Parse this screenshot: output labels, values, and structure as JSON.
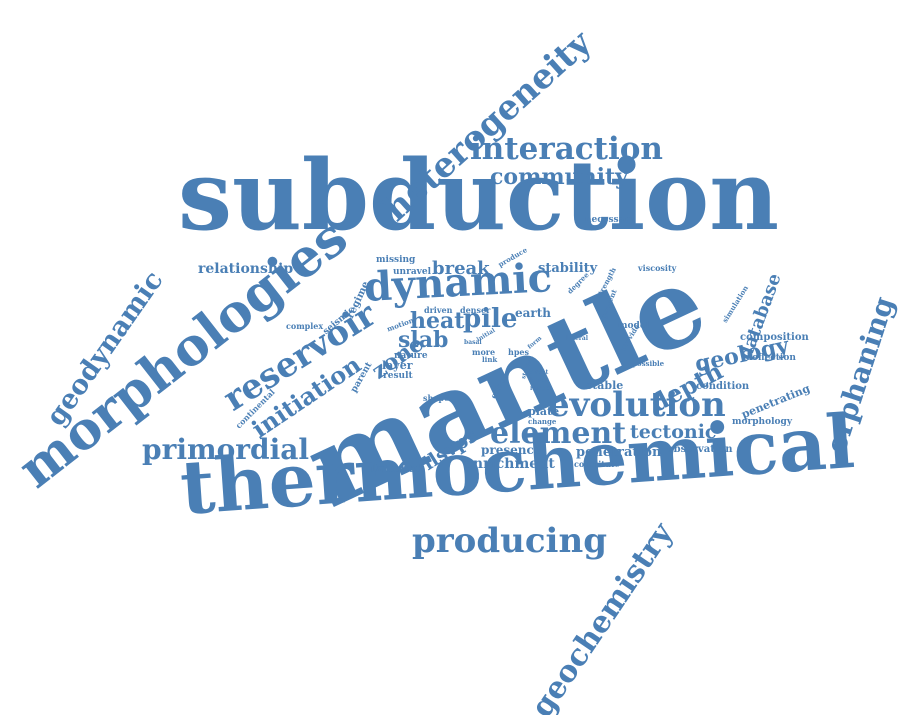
{
  "cloud": {
    "color": "#4a7fb5",
    "words": [
      {
        "text": "subduction",
        "weight": 10
      },
      {
        "text": "mantle",
        "weight": 10
      },
      {
        "text": "thermochemical",
        "weight": 9
      },
      {
        "text": "morphologies",
        "weight": 8
      },
      {
        "text": "heterogeneity",
        "weight": 7
      },
      {
        "text": "geodynamic",
        "weight": 6
      },
      {
        "text": "orphaning",
        "weight": 6
      },
      {
        "text": "geochemistry",
        "weight": 6
      },
      {
        "text": "dynamic",
        "weight": 6
      },
      {
        "text": "reservoir",
        "weight": 6
      },
      {
        "text": "evolution",
        "weight": 6
      },
      {
        "text": "element",
        "weight": 5
      },
      {
        "text": "producing",
        "weight": 5
      },
      {
        "text": "interaction",
        "weight": 5
      },
      {
        "text": "primordial",
        "weight": 4
      },
      {
        "text": "community",
        "weight": 4
      },
      {
        "text": "initiation",
        "weight": 4
      },
      {
        "text": "heat",
        "weight": 4
      },
      {
        "text": "pile",
        "weight": 4
      },
      {
        "text": "slab",
        "weight": 4
      },
      {
        "text": "zone",
        "weight": 4
      },
      {
        "text": "depth",
        "weight": 4
      },
      {
        "text": "geology",
        "weight": 4
      },
      {
        "text": "database",
        "weight": 3
      },
      {
        "text": "tectonic",
        "weight": 3
      },
      {
        "text": "llsvps",
        "weight": 3
      },
      {
        "text": "break",
        "weight": 3
      },
      {
        "text": "relationship",
        "weight": 3
      },
      {
        "text": "stability",
        "weight": 3
      },
      {
        "text": "enrichment",
        "weight": 2
      },
      {
        "text": "penetration",
        "weight": 2
      },
      {
        "text": "presence",
        "weight": 2
      },
      {
        "text": "observation",
        "weight": 2
      },
      {
        "text": "flattened",
        "weight": 2
      },
      {
        "text": "penetrating",
        "weight": 2
      },
      {
        "text": "earth",
        "weight": 2
      },
      {
        "text": "layer",
        "weight": 2
      },
      {
        "text": "composition",
        "weight": 2
      },
      {
        "text": "deflection",
        "weight": 2
      },
      {
        "text": "condition",
        "weight": 2
      },
      {
        "text": "morphology",
        "weight": 2
      },
      {
        "text": "seismic",
        "weight": 2
      },
      {
        "text": "regime",
        "weight": 2
      },
      {
        "text": "missing",
        "weight": 2
      },
      {
        "text": "unravel",
        "weight": 2
      },
      {
        "text": "nature",
        "weight": 2
      },
      {
        "text": "result",
        "weight": 2
      },
      {
        "text": "parent",
        "weight": 2
      },
      {
        "text": "driven",
        "weight": 2
      },
      {
        "text": "denser",
        "weight": 2
      },
      {
        "text": "stable",
        "weight": 2
      },
      {
        "text": "plate",
        "weight": 2
      },
      {
        "text": "model",
        "weight": 2
      },
      {
        "text": "necessary",
        "weight": 2
      },
      {
        "text": "viscosity",
        "weight": 1
      },
      {
        "text": "continental",
        "weight": 1
      },
      {
        "text": "complex",
        "weight": 1
      },
      {
        "text": "shape",
        "weight": 1
      },
      {
        "text": "simulation",
        "weight": 1
      },
      {
        "text": "strength",
        "weight": 1
      },
      {
        "text": "produce",
        "weight": 1
      },
      {
        "text": "degree",
        "weight": 1
      },
      {
        "text": "present",
        "weight": 1
      },
      {
        "text": "provide",
        "weight": 1
      },
      {
        "text": "possible",
        "weight": 1
      },
      {
        "text": "lateral",
        "weight": 1
      },
      {
        "text": "motion",
        "weight": 1
      },
      {
        "text": "more",
        "weight": 1
      },
      {
        "text": "link",
        "weight": 1
      },
      {
        "text": "hpes",
        "weight": 1
      },
      {
        "text": "basal",
        "weight": 1
      },
      {
        "text": "initial",
        "weight": 1
      },
      {
        "text": "event",
        "weight": 1
      },
      {
        "text": "lower",
        "weight": 1
      },
      {
        "text": "range",
        "weight": 1
      },
      {
        "text": "effect",
        "weight": 1
      },
      {
        "text": "change",
        "weight": 1
      },
      {
        "text": "constitute",
        "weight": 1
      },
      {
        "text": "form",
        "weight": 1
      },
      {
        "text": "studies",
        "weight": 1
      }
    ]
  }
}
